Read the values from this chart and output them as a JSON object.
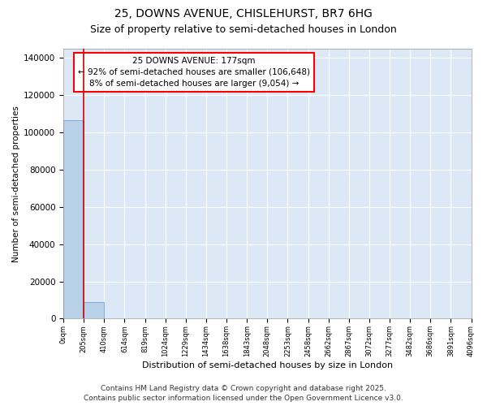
{
  "title_line1": "25, DOWNS AVENUE, CHISLEHURST, BR7 6HG",
  "title_line2": "Size of property relative to semi-detached houses in London",
  "xlabel": "Distribution of semi-detached houses by size in London",
  "ylabel": "Number of semi-detached properties",
  "annotation_title": "25 DOWNS AVENUE: 177sqm",
  "annotation_line2": "← 92% of semi-detached houses are smaller (106,648)",
  "annotation_line3": "8% of semi-detached houses are larger (9,054) →",
  "bar_values": [
    106648,
    9054,
    0,
    0,
    0,
    0,
    0,
    0,
    0,
    0,
    0,
    0,
    0,
    0,
    0,
    0,
    0,
    0,
    0,
    0
  ],
  "bar_color": "#b8d0e8",
  "bar_edge_color": "#6699cc",
  "vline_color": "#cc0000",
  "xlim": [
    0,
    20
  ],
  "ylim": [
    0,
    145000
  ],
  "yticks": [
    0,
    20000,
    40000,
    60000,
    80000,
    100000,
    120000,
    140000
  ],
  "xtick_labels": [
    "0sqm",
    "205sqm",
    "410sqm",
    "614sqm",
    "819sqm",
    "1024sqm",
    "1229sqm",
    "1434sqm",
    "1638sqm",
    "1843sqm",
    "2048sqm",
    "2253sqm",
    "2458sqm",
    "2662sqm",
    "2867sqm",
    "3072sqm",
    "3277sqm",
    "3482sqm",
    "3686sqm",
    "3891sqm",
    "4096sqm"
  ],
  "bg_color": "#dce8f5",
  "footer_line1": "Contains HM Land Registry data © Crown copyright and database right 2025.",
  "footer_line2": "Contains public sector information licensed under the Open Government Licence v3.0.",
  "grid_color": "#ffffff",
  "fig_bg_color": "#ffffff",
  "title_fontsize": 10,
  "subtitle_fontsize": 9,
  "annotation_fontsize": 7.5,
  "footer_fontsize": 6.5,
  "ylabel_fontsize": 7.5,
  "xlabel_fontsize": 8
}
